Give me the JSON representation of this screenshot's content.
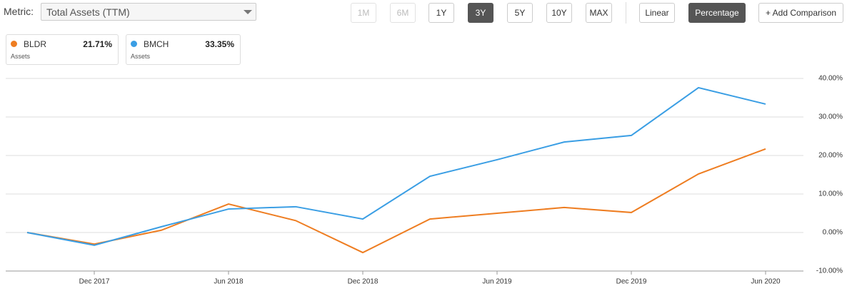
{
  "controls": {
    "metric_label": "Metric:",
    "metric": "Total Assets (TTM)",
    "ranges": [
      {
        "label": "1M",
        "state": "disabled"
      },
      {
        "label": "6M",
        "state": "disabled"
      },
      {
        "label": "1Y",
        "state": "normal"
      },
      {
        "label": "3Y",
        "state": "active"
      },
      {
        "label": "5Y",
        "state": "normal"
      },
      {
        "label": "10Y",
        "state": "normal"
      },
      {
        "label": "MAX",
        "state": "normal"
      }
    ],
    "scales": [
      {
        "label": "Linear",
        "state": "normal"
      },
      {
        "label": "Percentage",
        "state": "active"
      }
    ],
    "add_comparison": "+ Add Comparison"
  },
  "chart_data": {
    "type": "line",
    "categories": [
      null,
      "Dec 2017",
      null,
      "Jun 2018",
      null,
      "Dec 2018",
      null,
      "Jun 2019",
      null,
      "Dec 2019",
      null,
      "Jun 2020"
    ],
    "series": [
      {
        "name": "BLDR",
        "color": "#ee7d21",
        "sublabel": "Assets",
        "value_label": "21.71%",
        "values": [
          0,
          -3.0,
          0.6,
          7.4,
          3.1,
          -5.2,
          3.5,
          5.0,
          6.5,
          5.2,
          15.2,
          21.71
        ]
      },
      {
        "name": "BMCH",
        "color": "#3a9ee4",
        "sublabel": "Assets",
        "value_label": "33.35%",
        "values": [
          0,
          -3.3,
          1.5,
          6.1,
          6.7,
          3.5,
          14.6,
          18.9,
          23.5,
          25.2,
          37.6,
          33.35
        ]
      }
    ],
    "ylim": [
      -10,
      40
    ],
    "yticks": [
      {
        "value": -10,
        "label": "-10.00%"
      },
      {
        "value": 0,
        "label": "0.00%"
      },
      {
        "value": 10,
        "label": "10.00%"
      },
      {
        "value": 20,
        "label": "20.00%"
      },
      {
        "value": 30,
        "label": "30.00%"
      },
      {
        "value": 40,
        "label": "40.00%"
      }
    ],
    "grid": true
  }
}
